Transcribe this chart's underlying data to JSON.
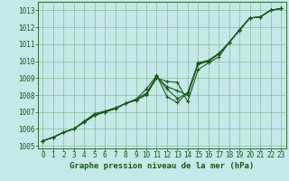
{
  "xlabel": "Graphe pression niveau de la mer (hPa)",
  "bg_color": "#c5e8e8",
  "grid_color": "#5a9a6a",
  "line_color": "#1a5a1a",
  "x": [
    0,
    1,
    2,
    3,
    4,
    5,
    6,
    7,
    8,
    9,
    10,
    11,
    12,
    13,
    14,
    15,
    16,
    17,
    18,
    19,
    20,
    21,
    22,
    23
  ],
  "lines": [
    [
      1005.3,
      1005.5,
      1005.8,
      1006.0,
      1006.4,
      1006.8,
      1007.0,
      1007.2,
      1007.5,
      1007.7,
      1008.0,
      1009.0,
      1008.8,
      1008.75,
      1007.6,
      1009.5,
      1009.9,
      1010.25,
      1011.1,
      1011.8,
      1012.55,
      1012.6,
      1013.0,
      1013.1
    ],
    [
      1005.3,
      1005.5,
      1005.8,
      1006.0,
      1006.4,
      1006.8,
      1007.0,
      1007.2,
      1007.5,
      1007.7,
      1008.05,
      1009.05,
      1008.5,
      1008.25,
      1008.0,
      1009.8,
      1010.0,
      1010.4,
      1011.1,
      1011.85,
      1012.55,
      1012.6,
      1013.0,
      1013.1
    ],
    [
      1005.3,
      1005.5,
      1005.8,
      1006.0,
      1006.45,
      1006.85,
      1007.0,
      1007.2,
      1007.5,
      1007.75,
      1008.1,
      1009.1,
      1008.35,
      1007.8,
      1008.1,
      1009.9,
      1010.05,
      1010.45,
      1011.1,
      1011.85,
      1012.55,
      1012.6,
      1013.0,
      1013.1
    ],
    [
      1005.3,
      1005.5,
      1005.8,
      1006.0,
      1006.45,
      1006.9,
      1007.05,
      1007.25,
      1007.5,
      1007.75,
      1008.35,
      1009.15,
      1007.9,
      1007.55,
      1008.15,
      1009.85,
      1010.0,
      1010.45,
      1011.1,
      1011.85,
      1012.55,
      1012.6,
      1013.0,
      1013.1
    ]
  ],
  "ylim": [
    1005.0,
    1013.5
  ],
  "yticks": [
    1005,
    1006,
    1007,
    1008,
    1009,
    1010,
    1011,
    1012,
    1013
  ],
  "xlim": [
    -0.5,
    23.5
  ],
  "xticks": [
    0,
    1,
    2,
    3,
    4,
    5,
    6,
    7,
    8,
    9,
    10,
    11,
    12,
    13,
    14,
    15,
    16,
    17,
    18,
    19,
    20,
    21,
    22,
    23
  ],
  "marker": "+",
  "marker_size": 3.5,
  "linewidth": 0.8,
  "fontsize_label": 6.5,
  "fontsize_tick": 5.5
}
